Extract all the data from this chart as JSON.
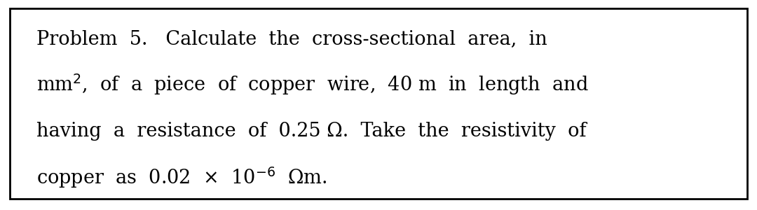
{
  "bg_color": "#ffffff",
  "border_color": "#000000",
  "border_linewidth": 2.0,
  "text_color": "#000000",
  "font_size": 19.5,
  "line1": "Problem  5.   Calculate  the  cross-sectional  area,  in",
  "line2_pre": "mm",
  "line2_sup": "$^{2}$",
  "line2_post": ",  of  a  piece  of  copper  wire,  40 m  in  length  and",
  "line3": "having  a  resistance  of  0.25 Ω.  Take  the  resistivity  of",
  "line4_pre": "copper  as  0.02  ×  10",
  "line4_sup": "$^{-6}$",
  "line4_post": "  Ωm."
}
